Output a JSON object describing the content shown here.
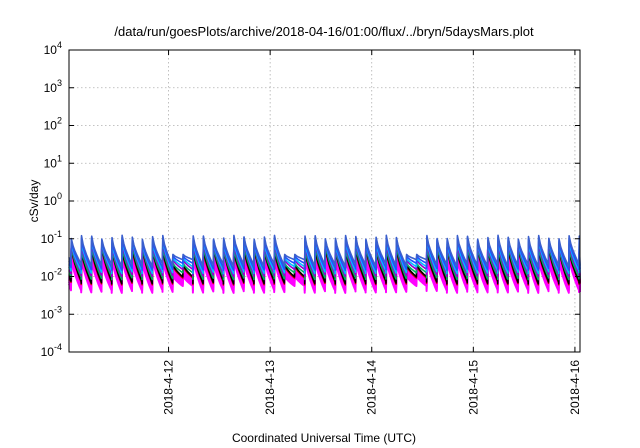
{
  "chart_data": {
    "type": "line",
    "title": "/data/run/goesPlots/archive/2018-04-16/01:00/flux/../bryn/5daysMars.plot",
    "xlabel": "Coordinated Universal Time (UTC)",
    "ylabel": "cSv/day",
    "yscale": "log",
    "ylim": [
      0.0001,
      10000
    ],
    "xlim": [
      0,
      5.03
    ],
    "yticks": [
      {
        "base": "10",
        "exp": "-4",
        "value": 0.0001
      },
      {
        "base": "10",
        "exp": "-3",
        "value": 0.001
      },
      {
        "base": "10",
        "exp": "-2",
        "value": 0.01
      },
      {
        "base": "10",
        "exp": "-1",
        "value": 0.1
      },
      {
        "base": "10",
        "exp": "0",
        "value": 1
      },
      {
        "base": "10",
        "exp": "1",
        "value": 10
      },
      {
        "base": "10",
        "exp": "2",
        "value": 100
      },
      {
        "base": "10",
        "exp": "3",
        "value": 1000
      },
      {
        "base": "10",
        "exp": "4",
        "value": 10000
      }
    ],
    "xticks": [
      {
        "label": "2018-4-12",
        "value": 0.98
      },
      {
        "label": "2018-4-13",
        "value": 1.98
      },
      {
        "label": "2018-4-14",
        "value": 2.98
      },
      {
        "label": "2018-4-15",
        "value": 3.98
      },
      {
        "label": "2018-4-16",
        "value": 4.98
      }
    ],
    "grid": true,
    "sawtooth": {
      "period_days": 0.1,
      "start_day": 0.02,
      "gap_start_days": [
        1.0,
        2.1,
        3.3
      ],
      "gap_length_days": 0.22
    },
    "series": [
      {
        "color": "#ff00ff",
        "peak": 0.03,
        "trough": 0.004
      },
      {
        "color": "#ff00ff",
        "peak": 0.035,
        "trough": 0.0045
      },
      {
        "color": "#ff00ff",
        "peak": 0.04,
        "trough": 0.005
      },
      {
        "color": "#ff00ff",
        "peak": 0.045,
        "trough": 0.0055
      },
      {
        "color": "#ff00ff",
        "peak": 0.05,
        "trough": 0.006
      },
      {
        "color": "#cc0000",
        "peak": 0.055,
        "trough": 0.0065
      },
      {
        "color": "#000000",
        "peak": 0.06,
        "trough": 0.007
      },
      {
        "color": "#00b060",
        "peak": 0.065,
        "trough": 0.009
      },
      {
        "color": "#9400d3",
        "peak": 0.08,
        "trough": 0.011
      },
      {
        "color": "#00c0ff",
        "peak": 0.09,
        "trough": 0.013
      },
      {
        "color": "#2050ff",
        "peak": 0.1,
        "trough": 0.016
      },
      {
        "color": "#3a5fcd",
        "peak": 0.11,
        "trough": 0.02
      }
    ]
  }
}
